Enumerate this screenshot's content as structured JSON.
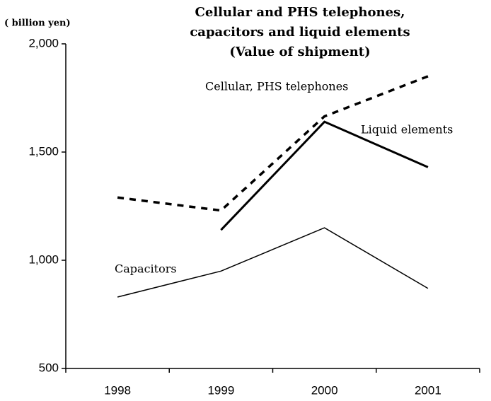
{
  "chart_data": {
    "type": "line",
    "title": [
      "Cellular and PHS telephones,",
      "capacitors and liquid elements",
      "(Value of shipment)"
    ],
    "y_label": "( billion yen)",
    "categories": [
      "1998",
      "1999",
      "2000",
      "2001"
    ],
    "series": [
      {
        "name": "Cellular, PHS telephones",
        "color": "#000000",
        "dash": true,
        "width": 3.5,
        "values": [
          1290,
          1230,
          1665,
          1850
        ]
      },
      {
        "name": "Liquid elements",
        "color": "#000000",
        "dash": false,
        "width": 3,
        "values": [
          null,
          1140,
          1640,
          1430
        ]
      },
      {
        "name": "Capacitors",
        "color": "#000000",
        "dash": false,
        "width": 1.5,
        "values": [
          830,
          950,
          1150,
          870
        ]
      }
    ],
    "ylim": [
      500,
      2000
    ],
    "yticks": [
      {
        "value": 500,
        "label": "500"
      },
      {
        "value": 1000,
        "label": "1,000"
      },
      {
        "value": 1500,
        "label": "1,500"
      },
      {
        "value": 2000,
        "label": "2,000"
      }
    ],
    "grid": false
  }
}
